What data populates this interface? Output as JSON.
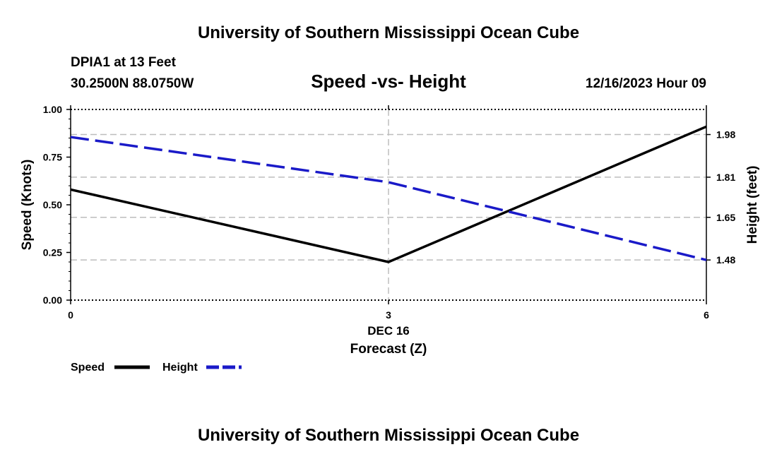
{
  "header": {
    "title": "University of Southern Mississippi Ocean Cube",
    "station": "DPIA1 at 13 Feet",
    "coords": "30.2500N  88.0750W",
    "chart_title": "Speed -vs- Height",
    "datetime": "12/16/2023 Hour 09"
  },
  "footer": {
    "title": "University of Southern Mississippi Ocean Cube"
  },
  "chart_data": {
    "type": "line",
    "title": "Speed -vs- Height",
    "xlabel": "Forecast (Z)",
    "xlabel_date": "DEC 16",
    "ylabel": "Speed (Knots)",
    "y2label": "Height (feet)",
    "x": [
      0,
      3,
      6
    ],
    "x_ticks": [
      "0",
      "3",
      "6"
    ],
    "xlim": [
      0,
      6
    ],
    "ylim": [
      0,
      1
    ],
    "y_ticks": [
      "0.00",
      "0.25",
      "0.50",
      "0.75",
      "1.00"
    ],
    "y2lim": [
      1.32,
      2.08
    ],
    "y2_ticks": [
      1.48,
      1.65,
      1.81,
      1.98
    ],
    "y2_tick_labels": [
      "1.48",
      "1.65",
      "1.81",
      "1.98"
    ],
    "grid": true,
    "series": [
      {
        "name": "Speed",
        "axis": "left",
        "color": "#000000",
        "style": "solid",
        "values": [
          0.58,
          0.2,
          0.91
        ]
      },
      {
        "name": "Height",
        "axis": "right",
        "color": "#1a1ac8",
        "style": "dashed",
        "values": [
          1.97,
          1.79,
          1.48
        ]
      }
    ]
  }
}
